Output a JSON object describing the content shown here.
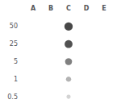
{
  "chart_data": {
    "type": "scatter",
    "x_categories": [
      "A",
      "B",
      "C",
      "D",
      "E"
    ],
    "y_categories": [
      "50",
      "25",
      "5",
      "1",
      "0.5"
    ],
    "x": [
      "C",
      "C",
      "C",
      "C",
      "C"
    ],
    "y": [
      "50",
      "25",
      "5",
      "1",
      "0.5"
    ],
    "sizes": [
      55,
      50,
      38,
      22,
      14
    ],
    "colors": [
      "#1a1a1a",
      "#252525",
      "#606060",
      "#a0a0a0",
      "#c8c8c8"
    ],
    "grid": false
  }
}
